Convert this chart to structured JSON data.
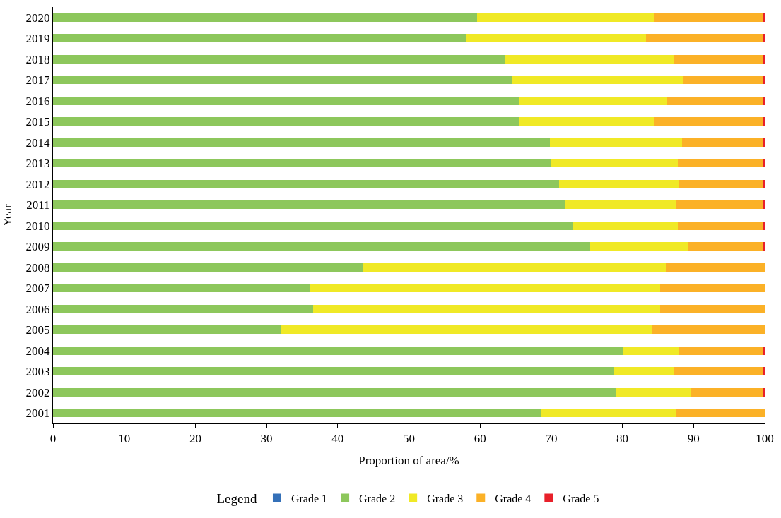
{
  "chart_data": {
    "type": "bar",
    "orientation": "horizontal",
    "stacked": true,
    "xlabel": "Proportion of area/%",
    "ylabel": "Year",
    "legend_title": "Legend",
    "legend": "bottom",
    "xlim": [
      0,
      100
    ],
    "xticks": [
      0,
      10,
      20,
      30,
      40,
      50,
      60,
      70,
      80,
      90,
      100
    ],
    "categories": [
      "2020",
      "2019",
      "2018",
      "2017",
      "2016",
      "2015",
      "2014",
      "2013",
      "2012",
      "2011",
      "2010",
      "2009",
      "2008",
      "2007",
      "2006",
      "2005",
      "2004",
      "2003",
      "2002",
      "2001"
    ],
    "series": [
      {
        "name": "Grade 1",
        "color": "#3470b8",
        "values": [
          0,
          0,
          0,
          0,
          0,
          0,
          0,
          0,
          0,
          0,
          0,
          0,
          0,
          0,
          0,
          0,
          0,
          0,
          0,
          0
        ]
      },
      {
        "name": "Grade 2",
        "color": "#8dc75c",
        "values": [
          59.6,
          58.0,
          63.5,
          64.5,
          65.5,
          65.4,
          69.8,
          70.0,
          71.1,
          71.9,
          73.1,
          75.5,
          43.5,
          36.1,
          36.5,
          32.1,
          80.0,
          78.8,
          79.0,
          68.6
        ]
      },
      {
        "name": "Grade 3",
        "color": "#f0e926",
        "values": [
          24.9,
          25.3,
          23.8,
          24.1,
          20.8,
          19.1,
          18.6,
          17.8,
          16.9,
          15.7,
          14.7,
          13.7,
          42.6,
          49.2,
          48.8,
          52.0,
          8.0,
          8.5,
          10.6,
          19.0
        ]
      },
      {
        "name": "Grade 4",
        "color": "#fbb127",
        "values": [
          15.2,
          16.4,
          12.4,
          11.1,
          13.4,
          15.2,
          11.3,
          11.9,
          11.7,
          12.1,
          11.9,
          10.5,
          13.9,
          14.7,
          14.7,
          15.9,
          11.7,
          12.4,
          10.1,
          12.4
        ]
      },
      {
        "name": "Grade 5",
        "color": "#e8202a",
        "values": [
          0.3,
          0.3,
          0.3,
          0.3,
          0.3,
          0.3,
          0.3,
          0.3,
          0.3,
          0.3,
          0.3,
          0.3,
          0,
          0,
          0,
          0,
          0.3,
          0.3,
          0.3,
          0
        ]
      }
    ]
  }
}
